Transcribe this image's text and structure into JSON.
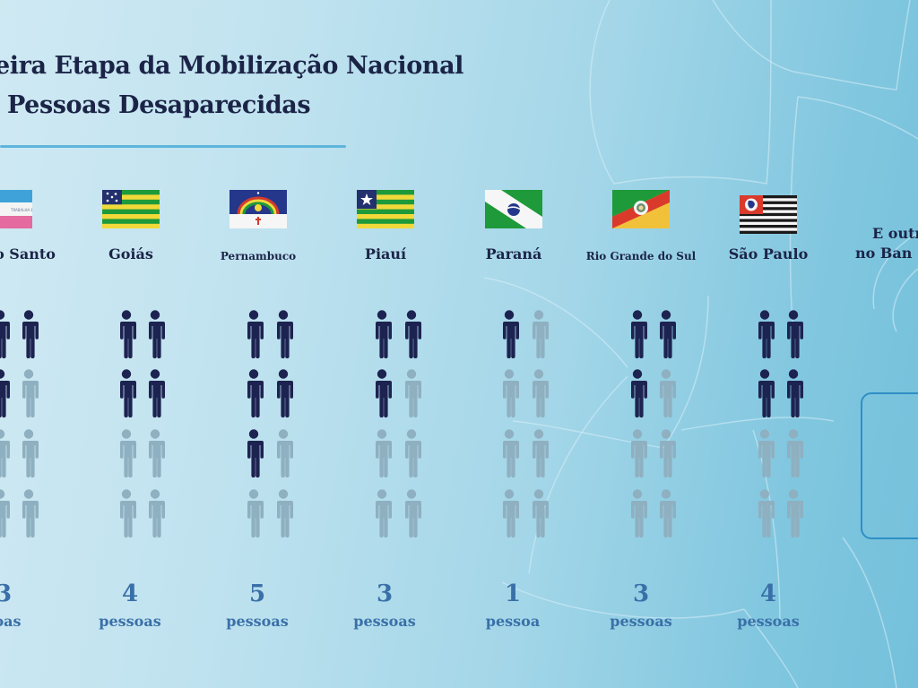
{
  "title": {
    "line1": "eira Etapa da Mobilização Nacional",
    "line2": "Pessoas Desaparecidas"
  },
  "colors": {
    "title": "#1b2447",
    "figure_filled": "#1d2350",
    "figure_empty": "#8fb0c0",
    "count": "#3a70a8",
    "rule": "#5db5dc",
    "box": "#2e8fc4"
  },
  "states": [
    {
      "name": "o Santo",
      "count": "3",
      "unit": "soas",
      "flag": "espirito-santo"
    },
    {
      "name": "Goiás",
      "count": "4",
      "unit": "pessoas",
      "flag": "goias"
    },
    {
      "name": "Pernambuco",
      "count": "5",
      "unit": "pessoas",
      "flag": "pernambuco"
    },
    {
      "name": "Piauí",
      "count": "3",
      "unit": "pessoas",
      "flag": "piaui"
    },
    {
      "name": "Paraná",
      "count": "1",
      "unit": "pessoa",
      "flag": "parana"
    },
    {
      "name": "Rio Grande do Sul",
      "count": "3",
      "unit": "pessoas",
      "flag": "rio-grande-do-sul"
    },
    {
      "name": "São Paulo",
      "count": "4",
      "unit": "pessoas",
      "flag": "sao-paulo"
    }
  ],
  "others": {
    "line1": "E outr",
    "line2": "no Ban"
  },
  "chart_data": {
    "type": "pictogram",
    "title": "Primeira Etapa da Mobilização Nacional de Pessoas Desaparecidas (partially cropped)",
    "unit": "pessoas",
    "categories": [
      "Espírito Santo",
      "Goiás",
      "Pernambuco",
      "Piauí",
      "Paraná",
      "Rio Grande do Sul",
      "São Paulo"
    ],
    "values": [
      3,
      4,
      5,
      3,
      1,
      3,
      4
    ],
    "icons_per_category": 8,
    "layout": "2 columns x 4 rows of person icons per state; filled icons = count",
    "annotations": [
      "E outr... no Ban... (cropped text at right)"
    ]
  }
}
